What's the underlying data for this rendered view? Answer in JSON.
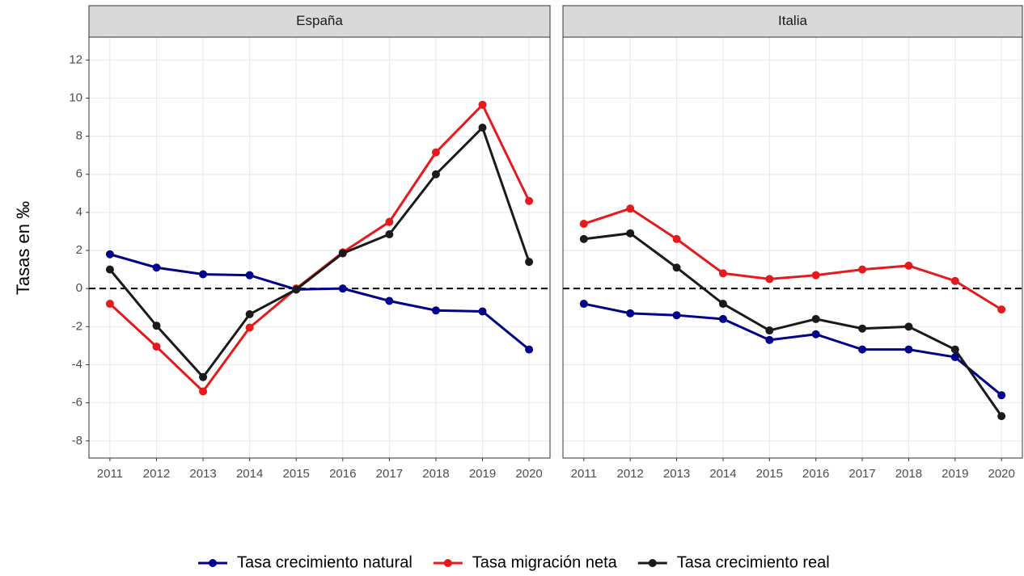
{
  "chart_data": [
    {
      "type": "line",
      "title": "España",
      "ylabel": "Tasas en ‰",
      "x": [
        2011,
        2012,
        2013,
        2014,
        2015,
        2016,
        2017,
        2018,
        2019,
        2020
      ],
      "xlim": [
        2010.55,
        2020.45
      ],
      "xticks": [
        2011,
        2012,
        2013,
        2014,
        2015,
        2016,
        2017,
        2018,
        2019,
        2020
      ],
      "ylim": [
        -8.9,
        13.2
      ],
      "yticks": [
        -8,
        -6,
        -4,
        -2,
        0,
        2,
        4,
        6,
        8,
        10,
        12
      ],
      "grid": true,
      "hline": 0,
      "series": [
        {
          "name": "Tasa crecimiento natural",
          "color": "#00008b",
          "values": [
            1.8,
            1.1,
            0.75,
            0.7,
            -0.05,
            0.0,
            -0.65,
            -1.15,
            -1.2,
            -3.2
          ]
        },
        {
          "name": "Tasa migración neta",
          "color": "#e41a1c",
          "values": [
            -0.8,
            -3.05,
            -5.4,
            -2.05,
            0.0,
            1.9,
            3.5,
            7.15,
            9.65,
            4.6
          ]
        },
        {
          "name": "Tasa crecimiento real",
          "color": "#1a1a1a",
          "values": [
            1.0,
            -1.95,
            -4.65,
            -1.35,
            -0.05,
            1.85,
            2.85,
            6.0,
            8.45,
            1.4
          ]
        }
      ]
    },
    {
      "type": "line",
      "title": "Italia",
      "x": [
        2011,
        2012,
        2013,
        2014,
        2015,
        2016,
        2017,
        2018,
        2019,
        2020
      ],
      "xlim": [
        2010.55,
        2020.45
      ],
      "xticks": [
        2011,
        2012,
        2013,
        2014,
        2015,
        2016,
        2017,
        2018,
        2019,
        2020
      ],
      "ylim": [
        -8.9,
        13.2
      ],
      "yticks": [
        -8,
        -6,
        -4,
        -2,
        0,
        2,
        4,
        6,
        8,
        10,
        12
      ],
      "grid": true,
      "hline": 0,
      "series": [
        {
          "name": "Tasa crecimiento natural",
          "color": "#00008b",
          "values": [
            -0.8,
            -1.3,
            -1.4,
            -1.6,
            -2.7,
            -2.4,
            -3.2,
            -3.2,
            -3.6,
            -5.6
          ]
        },
        {
          "name": "Tasa migración neta",
          "color": "#e41a1c",
          "values": [
            3.4,
            4.2,
            2.6,
            0.8,
            0.5,
            0.7,
            1.0,
            1.2,
            0.4,
            -1.1
          ]
        },
        {
          "name": "Tasa crecimiento real",
          "color": "#1a1a1a",
          "values": [
            2.6,
            2.9,
            1.1,
            -0.8,
            -2.2,
            -1.6,
            -2.1,
            -2.0,
            -3.2,
            -6.7
          ]
        }
      ]
    }
  ]
}
